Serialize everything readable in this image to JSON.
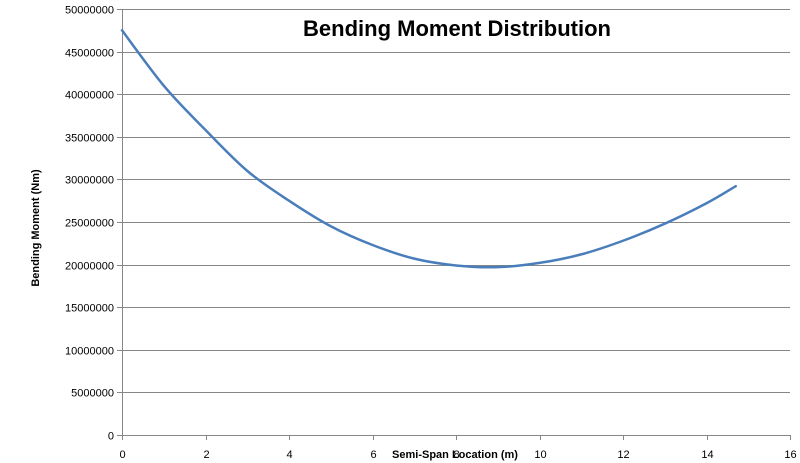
{
  "chart_data": {
    "type": "line",
    "title": "Bending Moment Distribution",
    "xlabel": "Semi-Span Location  (m)",
    "ylabel": "Bending Moment  (Nm)",
    "xlim": [
      0,
      16
    ],
    "ylim": [
      0,
      50000000
    ],
    "x_ticks": [
      "0",
      "2",
      "4",
      "6",
      "8",
      "10",
      "12",
      "14",
      "16"
    ],
    "y_ticks": [
      "0",
      "5000000",
      "10000000",
      "15000000",
      "20000000",
      "25000000",
      "30000000",
      "35000000",
      "40000000",
      "45000000",
      "50000000"
    ],
    "grid": "horizontal",
    "legend": "none",
    "series_color": "#4a7ebb",
    "series": [
      {
        "x": [
          0,
          1,
          2,
          3,
          4,
          5,
          6,
          7,
          8,
          9,
          10,
          11,
          12,
          13,
          14,
          14.7
        ],
        "y": [
          47500000,
          41000000,
          35800000,
          31000000,
          27500000,
          24500000,
          22300000,
          20700000,
          19900000,
          19700000,
          20200000,
          21200000,
          22800000,
          24800000,
          27200000,
          29200000
        ]
      }
    ]
  }
}
